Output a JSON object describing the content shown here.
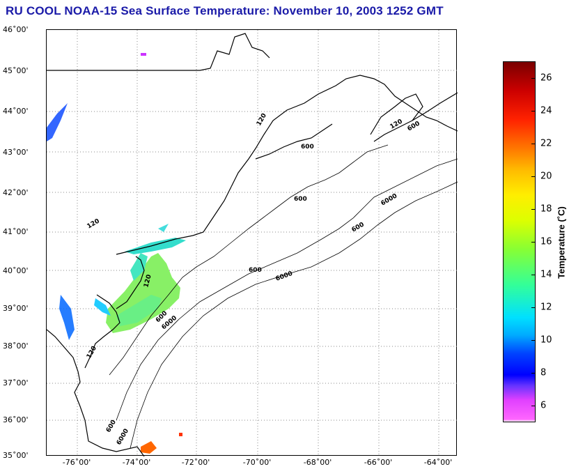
{
  "title": "RU COOL  NOAA-15  Sea Surface Temperature:  November 10, 2003 1252 GMT",
  "lat_labels": [
    "46˚00'",
    "45˚00'",
    "44˚00'",
    "43˚00'",
    "42˚00'",
    "41˚00'",
    "40˚00'",
    "39˚00'",
    "38˚00'",
    "37˚00'",
    "36˚00'",
    "35˚00'"
  ],
  "lon_labels": [
    "-76˚00'",
    "-74˚00'",
    "-72˚00'",
    "-70˚00'",
    "-68˚00'",
    "-66˚00'",
    "-64˚00'"
  ],
  "map_extent": {
    "lon_min": -77.0,
    "lon_max": -63.5,
    "lat_min": 35.0,
    "lat_max": 46.0
  },
  "isobath_labels": [
    "120",
    "600",
    "6000"
  ],
  "colorbar": {
    "label": "Temperature (˚C)",
    "ticks": [
      "26",
      "24",
      "22",
      "20",
      "18",
      "16",
      "14",
      "12",
      "10",
      "8",
      "6"
    ],
    "range": [
      5,
      27
    ]
  },
  "colors": {
    "title": "#1a1aa8",
    "land_outline": "#000000",
    "grid": "#888888"
  }
}
